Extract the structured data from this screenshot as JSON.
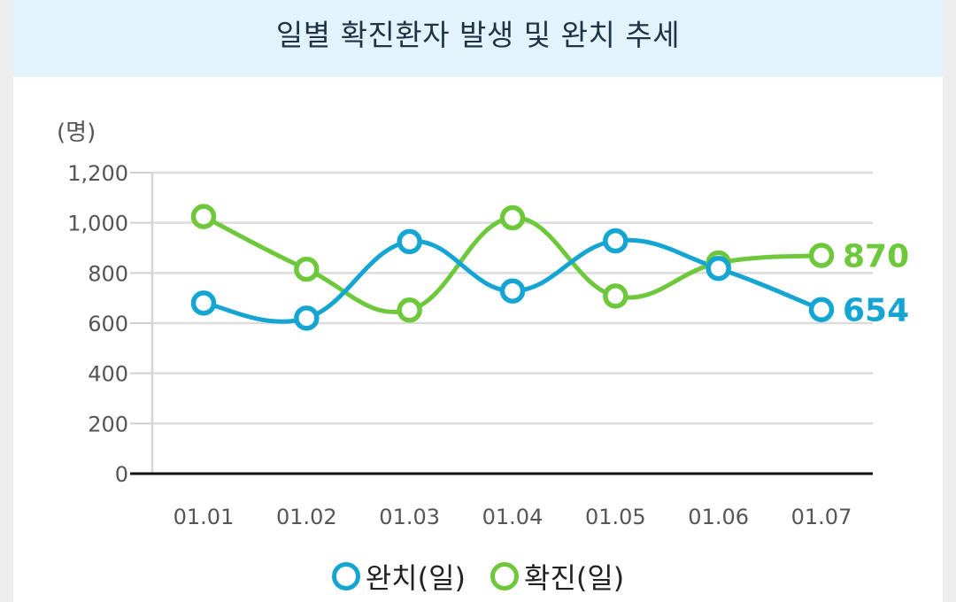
{
  "header": {
    "title": "일별 확진환자 발생 및 완치 추세"
  },
  "chart_data": {
    "type": "line",
    "title": "일별 확진환자 발생 및 완치 추세",
    "ylabel": "(명)",
    "xlabel": "",
    "categories": [
      "01.01",
      "01.02",
      "01.03",
      "01.04",
      "01.05",
      "01.06",
      "01.07"
    ],
    "ylim": [
      0,
      1200
    ],
    "yticks": [
      0,
      200,
      400,
      600,
      800,
      1000,
      1200
    ],
    "ytick_labels": [
      "0",
      "200",
      "400",
      "600",
      "800",
      "1,000",
      "1,200"
    ],
    "grid": true,
    "legend": "bottom",
    "series": [
      {
        "name": "완치(일)",
        "color": "#14a5d3",
        "values": [
          680,
          620,
          925,
          728,
          928,
          818,
          654
        ],
        "end_label": "654"
      },
      {
        "name": "확진(일)",
        "color": "#6dc83c",
        "values": [
          1025,
          815,
          652,
          1020,
          708,
          840,
          870
        ],
        "end_label": "870"
      }
    ]
  }
}
